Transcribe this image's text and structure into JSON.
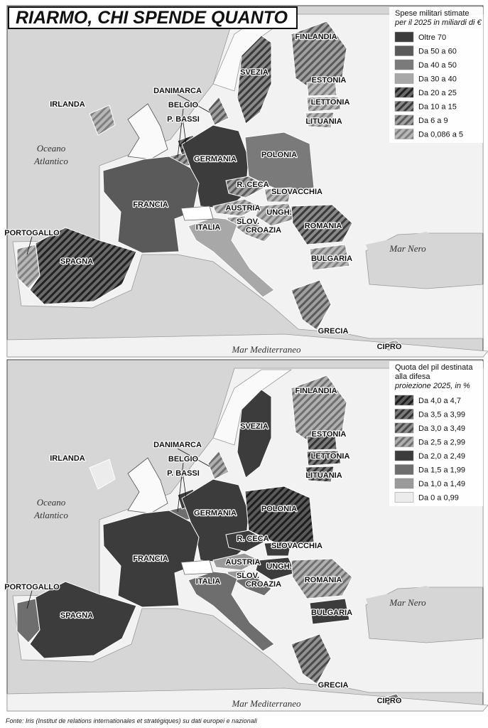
{
  "title": "RIARMO, CHI SPENDE QUANTO",
  "maps": [
    {
      "legend": {
        "title": [
          "Spese militari stimate"
        ],
        "subtitle": "per il 2025 in miliardi di €",
        "items": [
          {
            "label": "Oltre 70",
            "color": "#3c3c3c",
            "hatch": false
          },
          {
            "label": "Da 50 a 60",
            "color": "#5a5a5a",
            "hatch": false
          },
          {
            "label": "Da 40 a 50",
            "color": "#7a7a7a",
            "hatch": false
          },
          {
            "label": "Da 30 a 40",
            "color": "#a8a8a8",
            "hatch": false
          },
          {
            "label": "Da 20 a 25",
            "color": "#6a6a6a",
            "hatch": true,
            "stripe": "#222222"
          },
          {
            "label": "Da 10 a 15",
            "color": "#8a8a8a",
            "hatch": true,
            "stripe": "#3a3a3a"
          },
          {
            "label": "Da 6 a 9",
            "color": "#a0a0a0",
            "hatch": true,
            "stripe": "#5a5a5a"
          },
          {
            "label": "Da 0,086 a 5",
            "color": "#b8b8b8",
            "hatch": true,
            "stripe": "#808080"
          }
        ]
      },
      "countries": [
        {
          "name": "FINLANDIA",
          "class": "Da 6 a 9"
        },
        {
          "name": "SVEZIA",
          "class": "Da 10 a 15"
        },
        {
          "name": "ESTONIA",
          "class": "Da 0,086 a 5"
        },
        {
          "name": "LETTONIA",
          "class": "Da 0,086 a 5"
        },
        {
          "name": "LITUANIA",
          "class": "Da 0,086 a 5"
        },
        {
          "name": "DANIMARCA",
          "class": "Da 6 a 9"
        },
        {
          "name": "IRLANDA",
          "class": "Da 0,086 a 5"
        },
        {
          "name": "BELGIO",
          "class": "Da 6 a 9"
        },
        {
          "name": "P. BASSI",
          "class": "Da 20 a 25"
        },
        {
          "name": "GERMANIA",
          "class": "Oltre 70"
        },
        {
          "name": "POLONIA",
          "class": "Da 40 a 50"
        },
        {
          "name": "FRANCIA",
          "class": "Da 50 a 60"
        },
        {
          "name": "R. CECA",
          "class": "Da 6 a 9"
        },
        {
          "name": "SLOVACCHIA",
          "class": "Da 0,086 a 5"
        },
        {
          "name": "AUSTRIA",
          "class": "Da 0,086 a 5"
        },
        {
          "name": "UNGH.",
          "class": "Da 0,086 a 5"
        },
        {
          "name": "SLOV.",
          "class": "Da 0,086 a 5"
        },
        {
          "name": "CROAZIA",
          "class": "Da 0,086 a 5"
        },
        {
          "name": "ITALIA",
          "class": "Da 30 a 40"
        },
        {
          "name": "ROMANIA",
          "class": "Da 10 a 15"
        },
        {
          "name": "PORTOGALLO",
          "class": "Da 0,086 a 5"
        },
        {
          "name": "SPAGNA",
          "class": "Da 20 a 25"
        },
        {
          "name": "BULGARIA",
          "class": "Da 0,086 a 5"
        },
        {
          "name": "GRECIA",
          "class": "Da 6 a 9"
        },
        {
          "name": "CIPRO",
          "class": "Da 0,086 a 5"
        }
      ],
      "seas": {
        "ocean": [
          "Oceano",
          "Atlantico"
        ],
        "black": "Mar Nero",
        "med": "Mar Mediterraneo"
      }
    },
    {
      "legend": {
        "title": [
          "Quota del pil destinata",
          "alla difesa"
        ],
        "subtitle": "proiezione 2025, in %",
        "items": [
          {
            "label": "Da 4,0 a 4,7",
            "color": "#5a5a5a",
            "hatch": true,
            "stripe": "#1e1e1e"
          },
          {
            "label": "Da 3,5 a 3,99",
            "color": "#7a7a7a",
            "hatch": true,
            "stripe": "#333333"
          },
          {
            "label": "Da 3,0 a 3,49",
            "color": "#929292",
            "hatch": true,
            "stripe": "#4a4a4a"
          },
          {
            "label": "Da 2,5 a 2,99",
            "color": "#b0b0b0",
            "hatch": true,
            "stripe": "#707070"
          },
          {
            "label": "Da 2,0 a 2,49",
            "color": "#3c3c3c",
            "hatch": false
          },
          {
            "label": "Da 1,5 a 1,99",
            "color": "#6e6e6e",
            "hatch": false
          },
          {
            "label": "Da 1,0 a 1,49",
            "color": "#9a9a9a",
            "hatch": false
          },
          {
            "label": "Da 0 a 0,99",
            "color": "#ececec",
            "hatch": false
          }
        ]
      },
      "countries": [
        {
          "name": "FINLANDIA",
          "class": "Da 2,5 a 2,99"
        },
        {
          "name": "SVEZIA",
          "class": "Da 2,0 a 2,49"
        },
        {
          "name": "ESTONIA",
          "class": "Da 3,5 a 3,99"
        },
        {
          "name": "LETTONIA",
          "class": "Da 3,5 a 3,99"
        },
        {
          "name": "LITUANIA",
          "class": "Da 3,5 a 3,99"
        },
        {
          "name": "DANIMARCA",
          "class": "Da 2,5 a 2,99"
        },
        {
          "name": "IRLANDA",
          "class": "Da 0 a 0,99"
        },
        {
          "name": "BELGIO",
          "class": "Da 1,5 a 1,99"
        },
        {
          "name": "P. BASSI",
          "class": "Da 2,0 a 2,49"
        },
        {
          "name": "GERMANIA",
          "class": "Da 2,0 a 2,49"
        },
        {
          "name": "POLONIA",
          "class": "Da 4,0 a 4,7"
        },
        {
          "name": "FRANCIA",
          "class": "Da 2,0 a 2,49"
        },
        {
          "name": "R. CECA",
          "class": "Da 2,0 a 2,49"
        },
        {
          "name": "SLOVACCHIA",
          "class": "Da 2,0 a 2,49"
        },
        {
          "name": "AUSTRIA",
          "class": "Da 1,0 a 1,49"
        },
        {
          "name": "UNGH.",
          "class": "Da 2,0 a 2,49"
        },
        {
          "name": "SLOV.",
          "class": "Da 1,0 a 1,49"
        },
        {
          "name": "CROAZIA",
          "class": "Da 1,5 a 1,99"
        },
        {
          "name": "ITALIA",
          "class": "Da 1,5 a 1,99"
        },
        {
          "name": "ROMANIA",
          "class": "Da 2,5 a 2,99"
        },
        {
          "name": "PORTOGALLO",
          "class": "Da 1,5 a 1,99"
        },
        {
          "name": "SPAGNA",
          "class": "Da 2,0 a 2,49"
        },
        {
          "name": "BULGARIA",
          "class": "Da 2,0 a 2,49"
        },
        {
          "name": "GRECIA",
          "class": "Da 3,0 a 3,49"
        },
        {
          "name": "CIPRO",
          "class": "Da 1,5 a 1,99"
        }
      ],
      "seas": {
        "ocean": [
          "Oceano",
          "Atlantico"
        ],
        "black": "Mar Nero",
        "med": "Mar Mediterraneo"
      }
    }
  ],
  "source": "Fonte: Iris (Institut de relations internationales et stratégiques) su dati europei e nazionali"
}
